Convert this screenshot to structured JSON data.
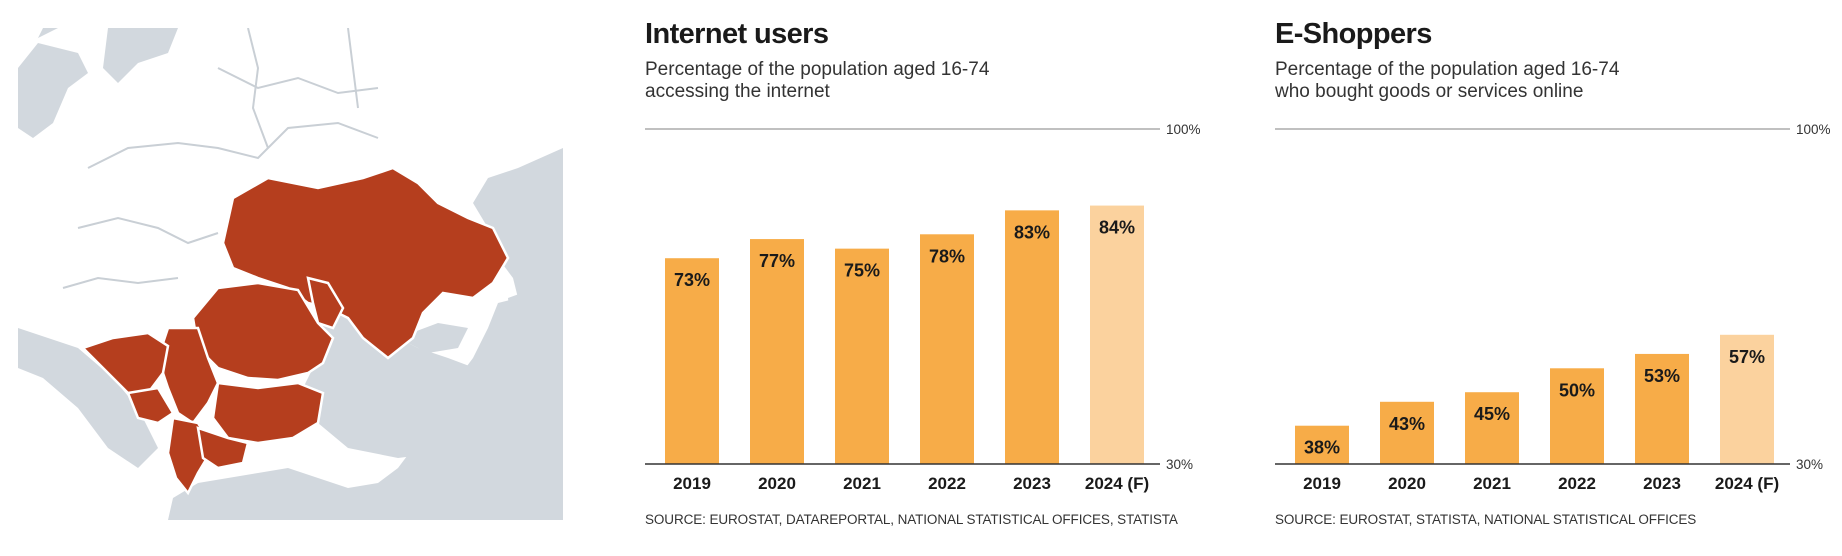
{
  "colors": {
    "bar": "#F7AC48",
    "bar_forecast": "#FBD29E",
    "map_highlight": "#B53E1E",
    "map_sea": "#D2D8DE",
    "map_border": "#FFFFFF",
    "axis": "#555555"
  },
  "chart_data": [
    {
      "type": "bar",
      "title": "Internet users",
      "subtitle_line1": "Percentage of the population aged 16-74",
      "subtitle_line2": "accessing the internet",
      "categories": [
        "2019",
        "2020",
        "2021",
        "2022",
        "2023",
        "2024 (F)"
      ],
      "values": [
        73,
        77,
        75,
        78,
        83,
        84
      ],
      "value_labels": [
        "73%",
        "77%",
        "75%",
        "78%",
        "83%",
        "84%"
      ],
      "forecast": [
        false,
        false,
        false,
        false,
        false,
        true
      ],
      "ylim": [
        30,
        100
      ],
      "ytick_labels": [
        "100%",
        "30%"
      ],
      "xlabel": "",
      "ylabel": "",
      "source": "SOURCE: EUROSTAT, DATAREPORTAL, NATIONAL STATISTICAL OFFICES, STATISTA"
    },
    {
      "type": "bar",
      "title": "E-Shoppers",
      "subtitle_line1": "Percentage of the population aged 16-74",
      "subtitle_line2": "who bought goods or services online",
      "categories": [
        "2019",
        "2020",
        "2021",
        "2022",
        "2023",
        "2024 (F)"
      ],
      "values": [
        38,
        43,
        45,
        50,
        53,
        57
      ],
      "value_labels": [
        "38%",
        "43%",
        "45%",
        "50%",
        "53%",
        "57%"
      ],
      "forecast": [
        false,
        false,
        false,
        false,
        false,
        true
      ],
      "ylim": [
        30,
        100
      ],
      "ytick_labels": [
        "100%",
        "30%"
      ],
      "xlabel": "",
      "ylabel": "",
      "source": "SOURCE: EUROSTAT, STATISTA, NATIONAL STATISTICAL OFFICES"
    }
  ]
}
